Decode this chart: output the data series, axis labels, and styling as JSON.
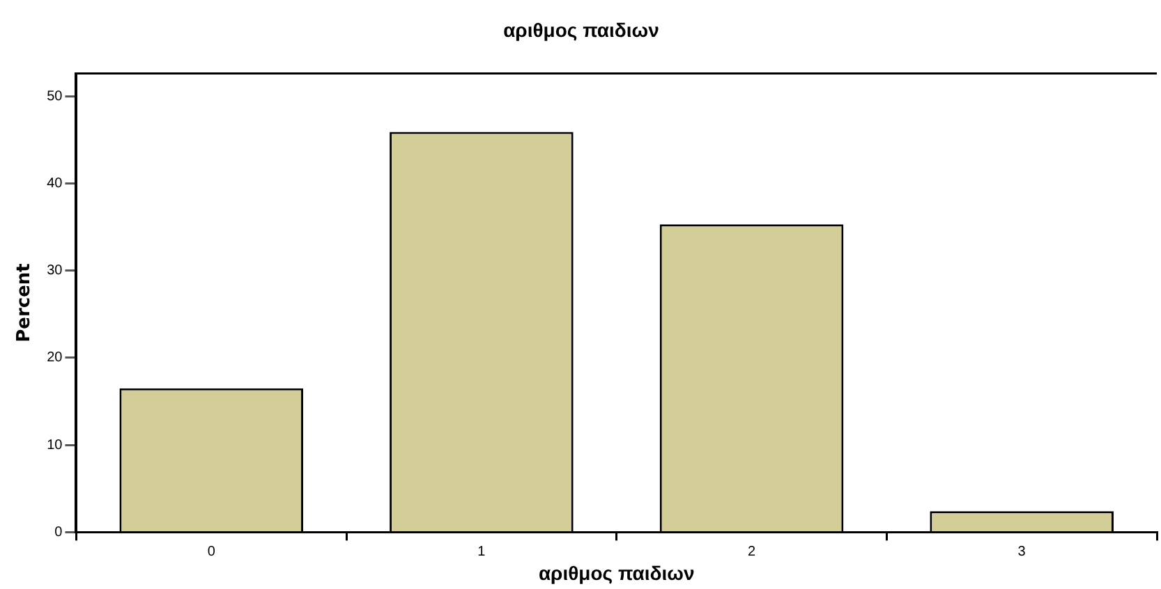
{
  "chart_data": {
    "type": "bar",
    "title": "αριθμος παιδιων",
    "xlabel": "αριθμος παιδιων",
    "ylabel": "Percent",
    "categories": [
      "0",
      "1",
      "2",
      "3"
    ],
    "values": [
      16.5,
      45.9,
      35.3,
      2.4
    ],
    "color": "#d3cd98",
    "ylim": [
      0,
      52.6
    ],
    "yticks": [
      0,
      10,
      20,
      30,
      40,
      50
    ],
    "grid": false,
    "legend": false
  }
}
